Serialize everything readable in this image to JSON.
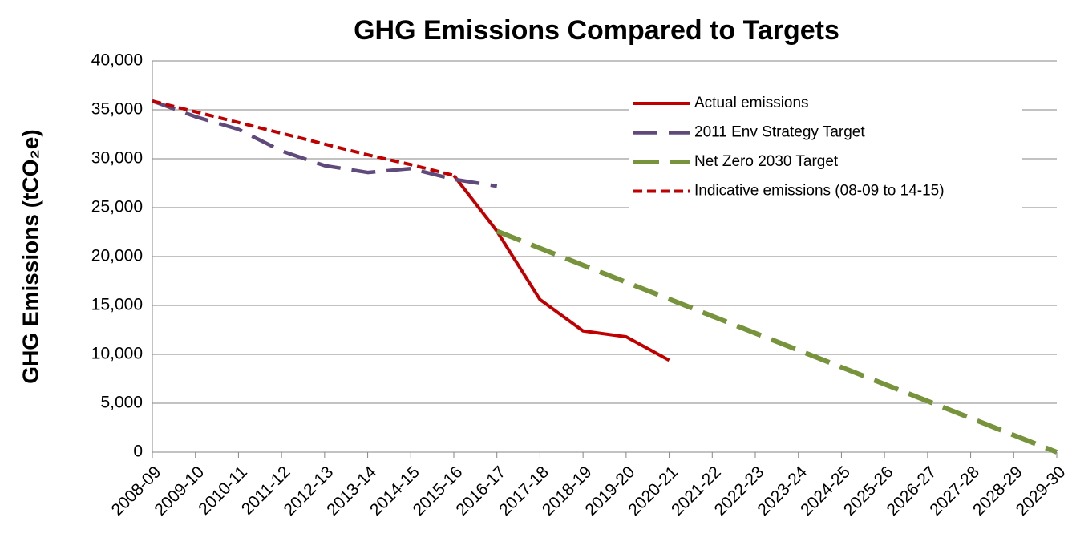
{
  "chart_data": {
    "type": "line",
    "title": "GHG Emissions Compared to Targets",
    "y_label": "GHG Emissions (tCO₂e)",
    "categories": [
      "2008-09",
      "2009-10",
      "2010-11",
      "2011-12",
      "2012-13",
      "2013-14",
      "2014-15",
      "2015-16",
      "2016-17",
      "2017-18",
      "2018-19",
      "2019-20",
      "2020-21",
      "2021-22",
      "2022-23",
      "2023-24",
      "2024-25",
      "2025-26",
      "2026-27",
      "2027-28",
      "2028-29",
      "2029-30"
    ],
    "series": [
      {
        "name": "Actual emissions",
        "color": "#c00000",
        "dash": "solid",
        "values": [
          null,
          null,
          null,
          null,
          null,
          null,
          null,
          28300,
          22600,
          15600,
          12400,
          11800,
          9400,
          null,
          null,
          null,
          null,
          null,
          null,
          null,
          null,
          null
        ]
      },
      {
        "name": "2011 Env Strategy Target",
        "color": "#604a7b",
        "dash": "long",
        "values": [
          35900,
          34300,
          33000,
          30800,
          29300,
          28600,
          29000,
          27900,
          27200,
          null,
          null,
          null,
          null,
          null,
          null,
          null,
          null,
          null,
          null,
          null,
          null,
          null
        ]
      },
      {
        "name": "Net Zero 2030 Target",
        "color": "#77933c",
        "dash": "long-thick",
        "values": [
          null,
          null,
          null,
          null,
          null,
          null,
          null,
          null,
          22600,
          20860,
          19120,
          17380,
          15650,
          13910,
          12170,
          10430,
          8690,
          6950,
          5220,
          3480,
          1740,
          0
        ]
      },
      {
        "name": "Indicative emissions (08-09 to 14-15)",
        "color": "#c00000",
        "dash": "short",
        "values": [
          35900,
          34800,
          33700,
          32600,
          31500,
          30400,
          29400,
          28300,
          null,
          null,
          null,
          null,
          null,
          null,
          null,
          null,
          null,
          null,
          null,
          null,
          null,
          null
        ]
      }
    ],
    "ylim": [
      0,
      40000
    ],
    "yticks": [
      0,
      {
        "value": 5000,
        "label": "5,000"
      },
      {
        "value": 10000,
        "label": "10,000"
      },
      {
        "value": 15000,
        "label": "15,000"
      },
      {
        "value": 20000,
        "label": "20,000"
      },
      {
        "value": 25000,
        "label": "25,000"
      },
      {
        "value": 30000,
        "label": "30,000"
      },
      {
        "value": 35000,
        "label": "35,000"
      },
      {
        "value": 40000,
        "label": "40,000"
      }
    ],
    "grid": true,
    "legend": "top-right"
  }
}
